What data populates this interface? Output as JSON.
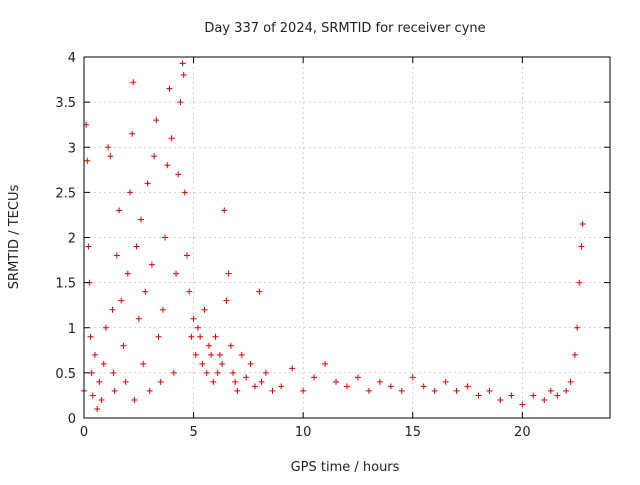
{
  "chart_data": {
    "type": "scatter",
    "title": "Day 337 of 2024, SRMTID for receiver cyne",
    "xlabel": "GPS time / hours",
    "ylabel": "SRMTID / TECUs",
    "xlim": [
      0,
      24
    ],
    "ylim": [
      0,
      4
    ],
    "x_ticks": [
      0,
      5,
      10,
      15,
      20
    ],
    "x_tick_labels": [
      "0",
      "5",
      "10",
      "15",
      "20"
    ],
    "y_ticks": [
      0,
      0.5,
      1,
      1.5,
      2,
      2.5,
      3,
      3.5,
      4
    ],
    "y_tick_labels": [
      "0",
      "0.5",
      "1",
      "1.5",
      "2",
      "2.5",
      "3",
      "3.5",
      "4"
    ],
    "grid": true,
    "marker": "+",
    "color": "#e00000",
    "series": [
      {
        "name": "SRMTID",
        "x": [
          0.0,
          0.1,
          0.15,
          0.2,
          0.25,
          0.3,
          0.35,
          0.4,
          0.5,
          0.6,
          0.7,
          0.8,
          0.9,
          1.0,
          1.1,
          1.2,
          1.3,
          1.35,
          1.4,
          1.5,
          1.6,
          1.7,
          1.8,
          1.9,
          2.0,
          2.1,
          2.2,
          2.25,
          2.3,
          2.4,
          2.5,
          2.6,
          2.7,
          2.8,
          2.9,
          3.0,
          3.1,
          3.2,
          3.3,
          3.4,
          3.5,
          3.6,
          3.7,
          3.8,
          3.9,
          4.0,
          4.1,
          4.2,
          4.3,
          4.4,
          4.5,
          4.55,
          4.6,
          4.7,
          4.8,
          4.9,
          5.0,
          5.1,
          5.2,
          5.3,
          5.4,
          5.5,
          5.6,
          5.7,
          5.8,
          5.9,
          6.0,
          6.1,
          6.2,
          6.3,
          6.4,
          6.5,
          6.6,
          6.7,
          6.8,
          6.9,
          7.0,
          7.2,
          7.4,
          7.6,
          7.8,
          8.0,
          8.1,
          8.3,
          8.6,
          9.0,
          9.5,
          10.0,
          10.5,
          11.0,
          11.5,
          12.0,
          12.5,
          13.0,
          13.5,
          14.0,
          14.5,
          15.0,
          15.5,
          16.0,
          16.5,
          17.0,
          17.5,
          18.0,
          18.5,
          19.0,
          19.5,
          20.0,
          20.5,
          21.0,
          21.3,
          21.6,
          22.0,
          22.2,
          22.4,
          22.5,
          22.6,
          22.7,
          22.75
        ],
        "y": [
          0.3,
          3.25,
          2.85,
          1.9,
          1.5,
          0.9,
          0.5,
          0.25,
          0.7,
          0.1,
          0.4,
          0.2,
          0.6,
          1.0,
          3.0,
          2.9,
          1.2,
          0.5,
          0.3,
          1.8,
          2.3,
          1.3,
          0.8,
          0.4,
          1.6,
          2.5,
          3.15,
          3.72,
          0.2,
          1.9,
          1.1,
          2.2,
          0.6,
          1.4,
          2.6,
          0.3,
          1.7,
          2.9,
          3.3,
          0.9,
          0.4,
          1.2,
          2.0,
          2.8,
          3.65,
          3.1,
          0.5,
          1.6,
          2.7,
          3.5,
          3.93,
          3.8,
          2.5,
          1.8,
          1.4,
          0.9,
          1.1,
          0.7,
          1.0,
          0.9,
          0.6,
          1.2,
          0.5,
          0.8,
          0.7,
          0.4,
          0.9,
          0.5,
          0.7,
          0.6,
          2.3,
          1.3,
          1.6,
          0.8,
          0.5,
          0.4,
          0.3,
          0.7,
          0.45,
          0.6,
          0.35,
          1.4,
          0.4,
          0.5,
          0.3,
          0.35,
          0.55,
          0.3,
          0.45,
          0.6,
          0.4,
          0.35,
          0.45,
          0.3,
          0.4,
          0.35,
          0.3,
          0.45,
          0.35,
          0.3,
          0.4,
          0.3,
          0.35,
          0.25,
          0.3,
          0.2,
          0.25,
          0.15,
          0.25,
          0.2,
          0.3,
          0.25,
          0.3,
          0.4,
          0.7,
          1.0,
          1.5,
          1.9,
          2.15
        ]
      }
    ]
  }
}
